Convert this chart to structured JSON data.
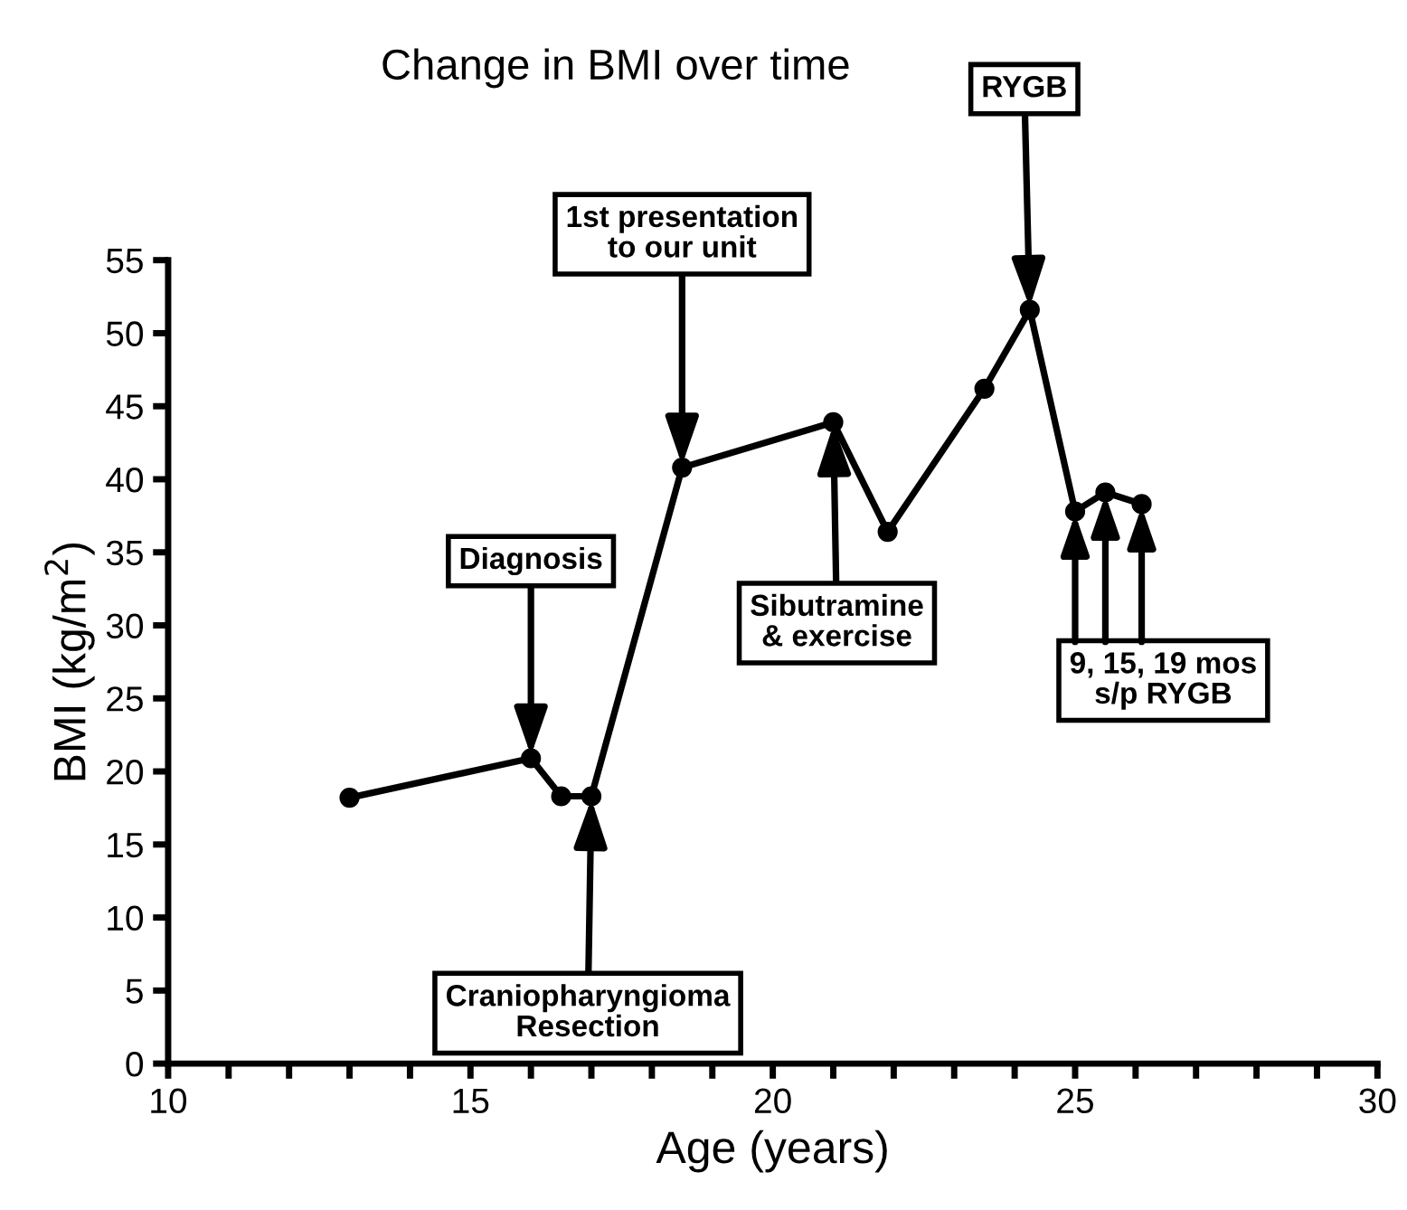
{
  "chart_data": {
    "type": "line",
    "title": "Change in BMI over time",
    "xlabel": "Age (years)",
    "ylabel": "BMI (kg/m$^{2}$)",
    "xlim": [
      10,
      30
    ],
    "ylim": [
      0,
      55
    ],
    "xticks": [
      10,
      {
        "value": 11,
        "label": null
      },
      {
        "value": 12,
        "label": null
      },
      {
        "value": 13,
        "label": null
      },
      {
        "value": 14,
        "label": null
      },
      15,
      {
        "value": 16,
        "label": null
      },
      {
        "value": 17,
        "label": null
      },
      {
        "value": 18,
        "label": null
      },
      {
        "value": 19,
        "label": null
      },
      20,
      {
        "value": 21,
        "label": null
      },
      {
        "value": 22,
        "label": null
      },
      {
        "value": 23,
        "label": null
      },
      {
        "value": 24,
        "label": null
      },
      25,
      {
        "value": 26,
        "label": null
      },
      {
        "value": 27,
        "label": null
      },
      {
        "value": 28,
        "label": null
      },
      {
        "value": 29,
        "label": null
      },
      30
    ],
    "yticks": [
      0,
      5,
      10,
      15,
      20,
      25,
      30,
      35,
      40,
      45,
      50,
      55
    ],
    "grid": false,
    "legend": false,
    "marker": "circle",
    "line_style": "solid",
    "series": [
      {
        "color": "#000000",
        "x": [
          13,
          16,
          16.5,
          17,
          18.5,
          21,
          21.9,
          23.5,
          24.25,
          25,
          25.5,
          26.1
        ],
        "values": [
          18.2,
          20.9,
          18.3,
          18.3,
          40.8,
          43.9,
          36.4,
          46.2,
          51.6,
          37.8,
          39.1,
          38.3
        ]
      }
    ],
    "annotations": [
      {
        "text": "Diagnosis",
        "x": 16,
        "y": 20.9
      },
      {
        "text": "Craniopharyngioma\nResection",
        "x": 17,
        "y": 18.3
      },
      {
        "text": "1st presentation\nto our unit",
        "x": 18.5,
        "y": 40.8
      },
      {
        "text": "Sibutramine\n& exercise",
        "x": 21,
        "y": 43.9
      },
      {
        "text": "RYGB",
        "x": 24.25,
        "y": 51.6
      },
      {
        "text": "9, 15, 19 mos\ns/p RYGB",
        "x": 25.5,
        "y": 39.1
      }
    ]
  }
}
